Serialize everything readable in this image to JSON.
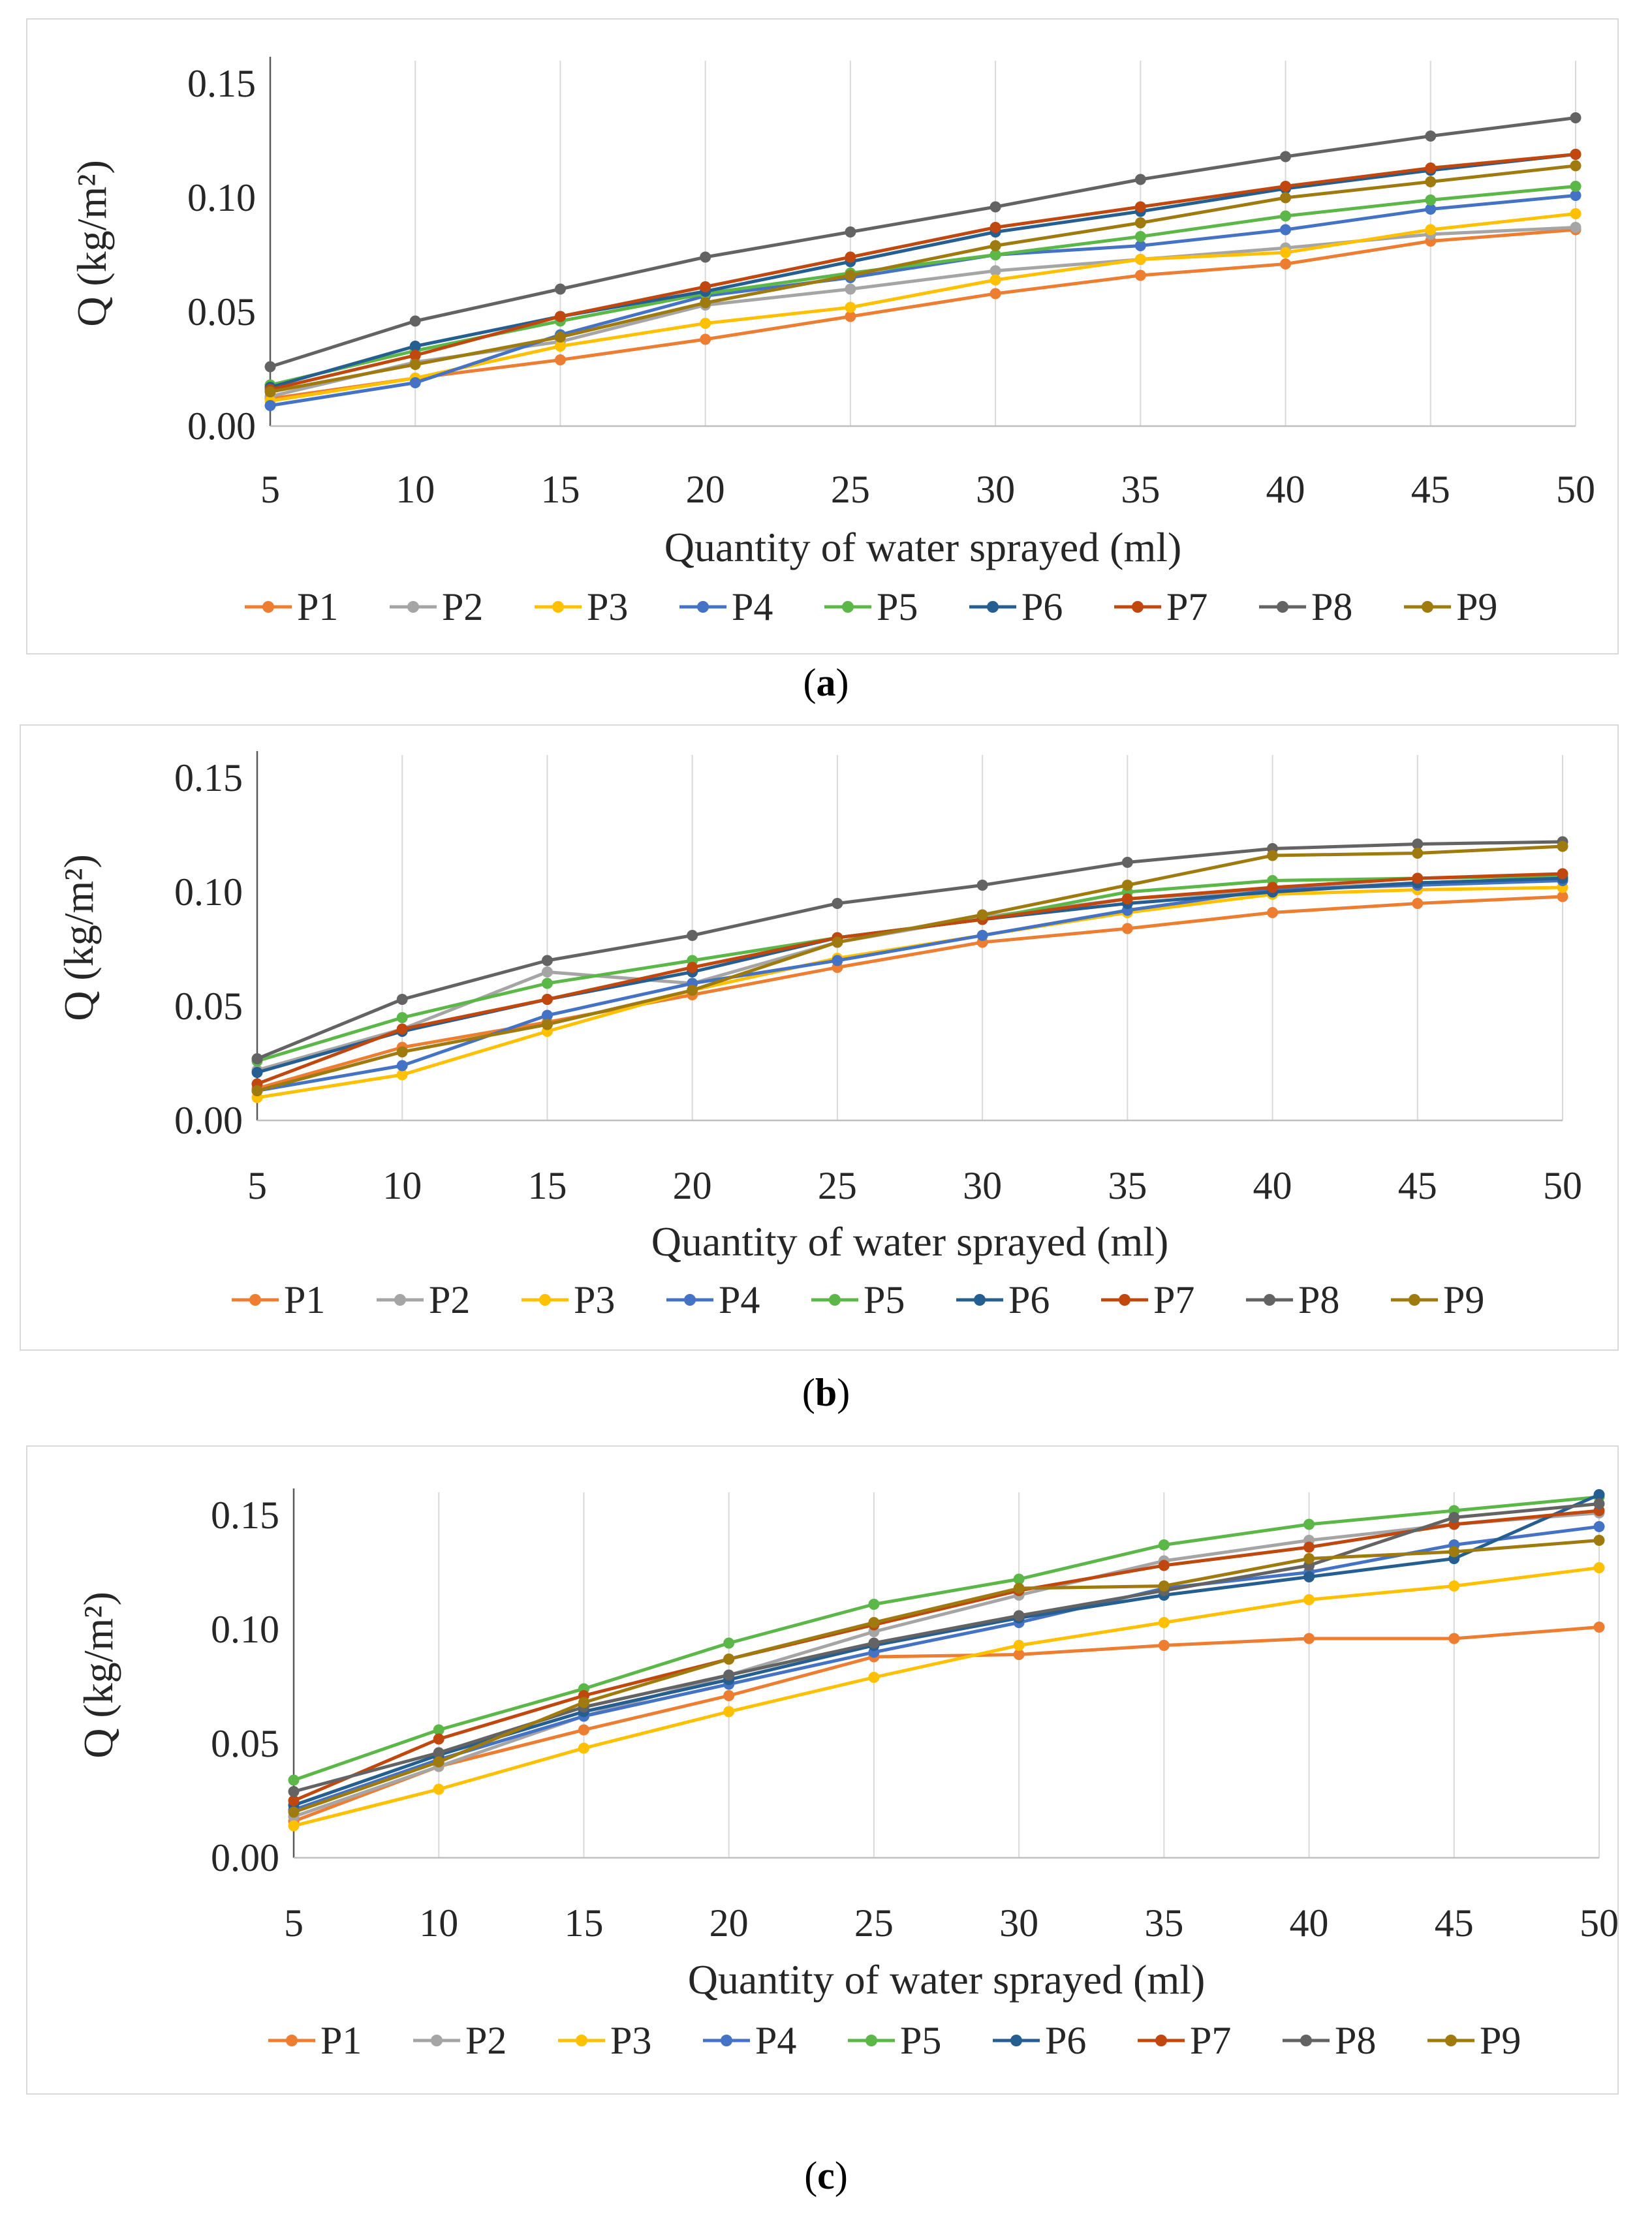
{
  "chart_data": [
    {
      "type": "line",
      "panel": "a",
      "caption_letter": "a",
      "ylabel": "Q (kg/m²)",
      "xlabel": "Quantity of water sprayed (ml)",
      "categories": [
        "5",
        "10",
        "15",
        "20",
        "25",
        "30",
        "35",
        "40",
        "45",
        "50"
      ],
      "yticks": [
        "0.00",
        "0.05",
        "0.10",
        "0.15"
      ],
      "ylim": [
        0,
        0.16
      ],
      "grid": true,
      "legend": "bottom",
      "series": [
        {
          "name": "P1",
          "color": "#ED7D31",
          "values": [
            0.012,
            0.021,
            0.029,
            0.038,
            0.048,
            0.058,
            0.066,
            0.071,
            0.081,
            0.086
          ]
        },
        {
          "name": "P2",
          "color": "#A5A5A5",
          "values": [
            0.013,
            0.028,
            0.037,
            0.053,
            0.06,
            0.068,
            0.073,
            0.078,
            0.084,
            0.087
          ]
        },
        {
          "name": "P3",
          "color": "#FFC000",
          "values": [
            0.011,
            0.021,
            0.035,
            0.045,
            0.052,
            0.064,
            0.073,
            0.076,
            0.086,
            0.093
          ]
        },
        {
          "name": "P4",
          "color": "#4472C4",
          "values": [
            0.009,
            0.019,
            0.04,
            0.057,
            0.065,
            0.075,
            0.079,
            0.086,
            0.095,
            0.101
          ]
        },
        {
          "name": "P5",
          "color": "#5BB747",
          "values": [
            0.018,
            0.033,
            0.046,
            0.058,
            0.067,
            0.075,
            0.083,
            0.092,
            0.099,
            0.105
          ]
        },
        {
          "name": "P6",
          "color": "#255E91",
          "values": [
            0.017,
            0.035,
            0.048,
            0.059,
            0.072,
            0.085,
            0.094,
            0.104,
            0.112,
            0.119
          ]
        },
        {
          "name": "P7",
          "color": "#C0480E",
          "values": [
            0.016,
            0.031,
            0.048,
            0.061,
            0.074,
            0.087,
            0.096,
            0.105,
            0.113,
            0.119
          ]
        },
        {
          "name": "P8",
          "color": "#636363",
          "values": [
            0.026,
            0.046,
            0.06,
            0.074,
            0.085,
            0.096,
            0.108,
            0.118,
            0.127,
            0.135
          ]
        },
        {
          "name": "P9",
          "color": "#9E7A0F",
          "values": [
            0.015,
            0.027,
            0.039,
            0.054,
            0.066,
            0.079,
            0.089,
            0.1,
            0.107,
            0.114
          ]
        }
      ]
    },
    {
      "type": "line",
      "panel": "b",
      "caption_letter": "b",
      "ylabel": "Q (kg/m²)",
      "xlabel": "Quantity of water sprayed (ml)",
      "categories": [
        "5",
        "10",
        "15",
        "20",
        "25",
        "30",
        "35",
        "40",
        "45",
        "50"
      ],
      "yticks": [
        "0.00",
        "0.05",
        "0.10",
        "0.15"
      ],
      "ylim": [
        0,
        0.16
      ],
      "grid": true,
      "legend": "bottom",
      "series": [
        {
          "name": "P1",
          "color": "#ED7D31",
          "values": [
            0.014,
            0.032,
            0.043,
            0.055,
            0.067,
            0.078,
            0.084,
            0.091,
            0.095,
            0.098
          ]
        },
        {
          "name": "P2",
          "color": "#A5A5A5",
          "values": [
            0.022,
            0.04,
            0.065,
            0.06,
            0.078,
            0.089,
            0.097,
            0.101,
            0.104,
            0.106
          ]
        },
        {
          "name": "P3",
          "color": "#FFC000",
          "values": [
            0.01,
            0.02,
            0.039,
            0.057,
            0.071,
            0.081,
            0.091,
            0.099,
            0.101,
            0.102
          ]
        },
        {
          "name": "P4",
          "color": "#4472C4",
          "values": [
            0.013,
            0.024,
            0.046,
            0.06,
            0.07,
            0.081,
            0.092,
            0.101,
            0.103,
            0.105
          ]
        },
        {
          "name": "P5",
          "color": "#5BB747",
          "values": [
            0.026,
            0.045,
            0.06,
            0.07,
            0.08,
            0.088,
            0.1,
            0.105,
            0.106,
            0.107
          ]
        },
        {
          "name": "P6",
          "color": "#255E91",
          "values": [
            0.021,
            0.039,
            0.053,
            0.065,
            0.08,
            0.088,
            0.095,
            0.1,
            0.104,
            0.106
          ]
        },
        {
          "name": "P7",
          "color": "#C0480E",
          "values": [
            0.016,
            0.04,
            0.053,
            0.067,
            0.08,
            0.088,
            0.097,
            0.102,
            0.106,
            0.108
          ]
        },
        {
          "name": "P8",
          "color": "#636363",
          "values": [
            0.027,
            0.053,
            0.07,
            0.081,
            0.095,
            0.103,
            0.113,
            0.119,
            0.121,
            0.122
          ]
        },
        {
          "name": "P9",
          "color": "#9E7A0F",
          "values": [
            0.013,
            0.03,
            0.042,
            0.057,
            0.078,
            0.09,
            0.103,
            0.116,
            0.117,
            0.12
          ]
        }
      ]
    },
    {
      "type": "line",
      "panel": "c",
      "caption_letter": "c",
      "ylabel": "Q (kg/m²)",
      "xlabel": "Quantity of water sprayed (ml)",
      "categories": [
        "5",
        "10",
        "15",
        "20",
        "25",
        "30",
        "35",
        "40",
        "45",
        "50"
      ],
      "yticks": [
        "0.00",
        "0.05",
        "0.10",
        "0.15"
      ],
      "ylim": [
        0,
        0.16
      ],
      "grid": true,
      "legend": "bottom",
      "series": [
        {
          "name": "P1",
          "color": "#ED7D31",
          "values": [
            0.016,
            0.04,
            0.056,
            0.071,
            0.088,
            0.089,
            0.093,
            0.096,
            0.096,
            0.101
          ]
        },
        {
          "name": "P2",
          "color": "#A5A5A5",
          "values": [
            0.018,
            0.04,
            0.062,
            0.08,
            0.099,
            0.115,
            0.13,
            0.139,
            0.146,
            0.151
          ]
        },
        {
          "name": "P3",
          "color": "#FFC000",
          "values": [
            0.014,
            0.03,
            0.048,
            0.064,
            0.079,
            0.093,
            0.103,
            0.113,
            0.119,
            0.127
          ]
        },
        {
          "name": "P4",
          "color": "#4472C4",
          "values": [
            0.021,
            0.043,
            0.062,
            0.076,
            0.09,
            0.103,
            0.118,
            0.125,
            0.137,
            0.145
          ]
        },
        {
          "name": "P5",
          "color": "#5BB747",
          "values": [
            0.034,
            0.056,
            0.074,
            0.094,
            0.111,
            0.122,
            0.137,
            0.146,
            0.152,
            0.158
          ]
        },
        {
          "name": "P6",
          "color": "#255E91",
          "values": [
            0.023,
            0.045,
            0.064,
            0.078,
            0.093,
            0.105,
            0.115,
            0.123,
            0.131,
            0.159
          ]
        },
        {
          "name": "P7",
          "color": "#C0480E",
          "values": [
            0.025,
            0.052,
            0.071,
            0.087,
            0.102,
            0.117,
            0.128,
            0.136,
            0.146,
            0.152
          ]
        },
        {
          "name": "P8",
          "color": "#636363",
          "values": [
            0.029,
            0.046,
            0.066,
            0.08,
            0.094,
            0.106,
            0.117,
            0.128,
            0.149,
            0.155
          ]
        },
        {
          "name": "P9",
          "color": "#9E7A0F",
          "values": [
            0.02,
            0.042,
            0.068,
            0.087,
            0.103,
            0.118,
            0.119,
            0.131,
            0.134,
            0.139
          ]
        }
      ]
    }
  ]
}
